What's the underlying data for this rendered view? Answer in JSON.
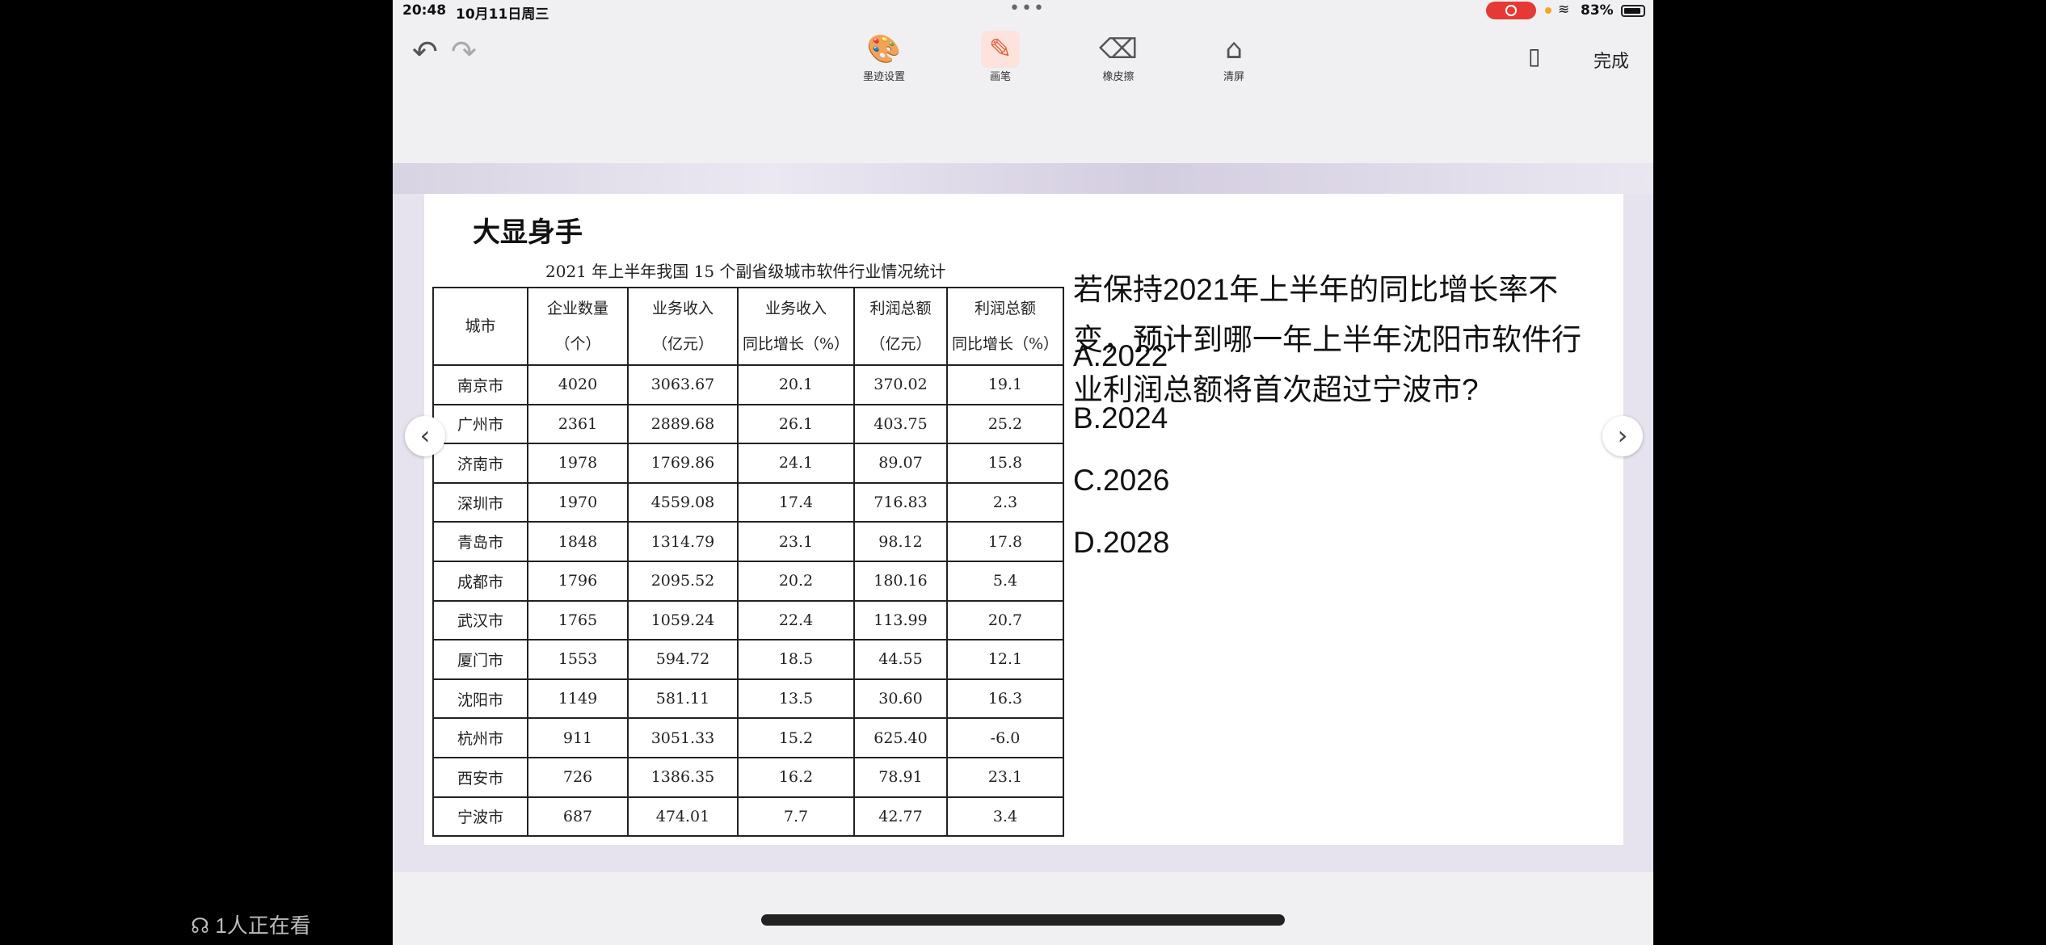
{
  "status_bar": {
    "time": "20:48",
    "date": "10月11日周三",
    "battery": "83%"
  },
  "toolbar": {
    "tools": [
      {
        "label": "墨迹设置",
        "icon": "palette-icon"
      },
      {
        "label": "画笔",
        "icon": "pen-icon"
      },
      {
        "label": "橡皮擦",
        "icon": "eraser-icon"
      },
      {
        "label": "清屏",
        "icon": "broom-icon"
      }
    ],
    "done_label": "完成"
  },
  "slide": {
    "title": "大显身手",
    "table_caption": "2021 年上半年我国 15 个副省级城市软件行业情况统计",
    "headers": [
      [
        "城市"
      ],
      [
        "企业数量",
        "（个）"
      ],
      [
        "业务收入",
        "（亿元）"
      ],
      [
        "业务收入",
        "同比增长（%）"
      ],
      [
        "利润总额",
        "（亿元）"
      ],
      [
        "利润总额",
        "同比增长（%）"
      ]
    ],
    "rows": [
      [
        "南京市",
        "4020",
        "3063.67",
        "20.1",
        "370.02",
        "19.1"
      ],
      [
        "广州市",
        "2361",
        "2889.68",
        "26.1",
        "403.75",
        "25.2"
      ],
      [
        "济南市",
        "1978",
        "1769.86",
        "24.1",
        "89.07",
        "15.8"
      ],
      [
        "深圳市",
        "1970",
        "4559.08",
        "17.4",
        "716.83",
        "2.3"
      ],
      [
        "青岛市",
        "1848",
        "1314.79",
        "23.1",
        "98.12",
        "17.8"
      ],
      [
        "成都市",
        "1796",
        "2095.52",
        "20.2",
        "180.16",
        "5.4"
      ],
      [
        "武汉市",
        "1765",
        "1059.24",
        "22.4",
        "113.99",
        "20.7"
      ],
      [
        "厦门市",
        "1553",
        "594.72",
        "18.5",
        "44.55",
        "12.1"
      ],
      [
        "沈阳市",
        "1149",
        "581.11",
        "13.5",
        "30.60",
        "16.3"
      ],
      [
        "杭州市",
        "911",
        "3051.33",
        "15.2",
        "625.40",
        "-6.0"
      ],
      [
        "西安市",
        "726",
        "1386.35",
        "16.2",
        "78.91",
        "23.1"
      ],
      [
        "宁波市",
        "687",
        "474.01",
        "7.7",
        "42.77",
        "3.4"
      ]
    ],
    "question": "若保持2021年上半年的同比增长率不变，预计到哪一年上半年沈阳市软件行业利润总额将首次超过宁波市?",
    "options": [
      "A.2022",
      "B.2024",
      "C.2026",
      "D.2028"
    ]
  },
  "viewers_text": "1人正在看"
}
